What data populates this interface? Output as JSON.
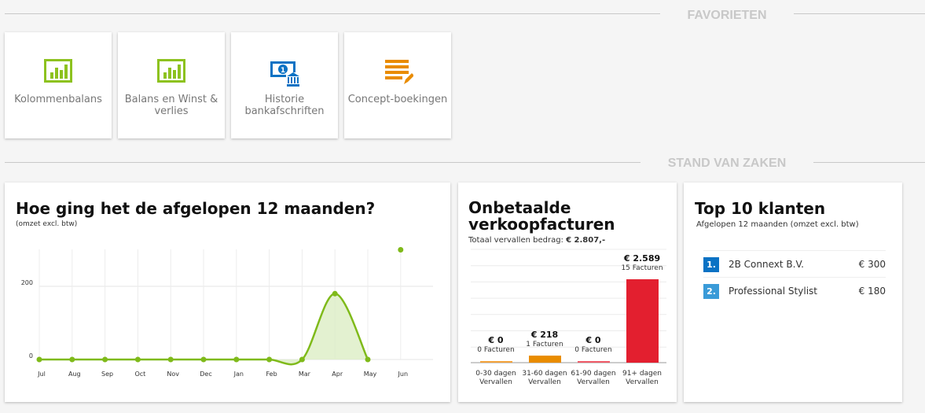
{
  "sections": {
    "favorites": "FAVORIETEN",
    "status": "STAND VAN ZAKEN"
  },
  "tiles": [
    {
      "label": "Kolommenbalans",
      "icon": "bar-chart-icon",
      "color": "#8dc21f"
    },
    {
      "label": "Balans en Winst & verlies",
      "icon": "bar-chart-icon",
      "color": "#8dc21f"
    },
    {
      "label": "Historie bankafschriften",
      "icon": "bank-note-icon",
      "color": "#0a72c4"
    },
    {
      "label": "Concept-boekingen",
      "icon": "edit-list-icon",
      "color": "#e98c00"
    }
  ],
  "revenue": {
    "title": "Hoe ging het de afgelopen 12 maanden?",
    "subtitle": "(omzet excl. btw)",
    "chart_data": {
      "type": "area",
      "categories": [
        "Jul",
        "Aug",
        "Sep",
        "Oct",
        "Nov",
        "Dec",
        "Jan",
        "Feb",
        "Mar",
        "Apr",
        "May",
        "Jun"
      ],
      "values": [
        0,
        0,
        0,
        0,
        0,
        0,
        0,
        0,
        0,
        180,
        0,
        300
      ],
      "yticks": [
        0,
        200
      ],
      "ylim": [
        0,
        300
      ],
      "color": "#7fba1a",
      "grid": true
    }
  },
  "unpaid": {
    "title_line1": "Onbetaalde",
    "title_line2": "verkoopfacturen",
    "total_label": "Totaal vervallen bedrag:",
    "total_value": "€ 2.807,-",
    "chart_data": {
      "type": "bar",
      "categories": [
        [
          "0-30 dagen",
          "Vervallen"
        ],
        [
          "31-60 dagen",
          "Vervallen"
        ],
        [
          "61-90 dagen",
          "Vervallen"
        ],
        [
          "91+ dagen",
          "Vervallen"
        ]
      ],
      "values": [
        0,
        218,
        0,
        2589
      ],
      "amount_labels": [
        "€ 0",
        "€ 218",
        "€ 0",
        "€ 2.589"
      ],
      "count_labels": [
        "0 Facturen",
        "1 Facturen",
        "0 Facturen",
        "15 Facturen"
      ],
      "colors": [
        "#f3a23a",
        "#e98c00",
        "#ef5a67",
        "#e31f2f"
      ]
    }
  },
  "top": {
    "title": "Top 10 klanten",
    "subtitle": "Afgelopen 12 maanden (omzet excl. btw)",
    "items": [
      {
        "rank": "1.",
        "name": "2B Connext B.V.",
        "amount": "€ 300",
        "color": "#0a72c4"
      },
      {
        "rank": "2.",
        "name": "Professional Stylist",
        "amount": "€ 180",
        "color": "#3a9bd8"
      }
    ]
  }
}
